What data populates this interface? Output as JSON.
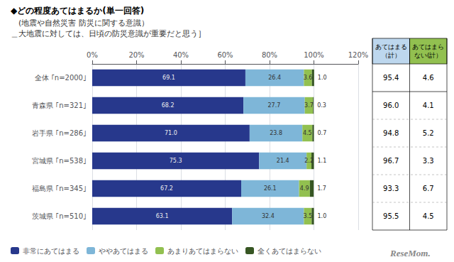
{
  "chart_data": {
    "type": "bar",
    "orientation": "horizontal",
    "stacked": true,
    "data_labels": true,
    "grid": true,
    "legend": "lower left",
    "title": "◆どの程度あてはまるか(単一回答)",
    "subtitle": "　(地震や自然災害 防災に関する意識）\n＿大地震に対しては、日頃の防災意識が重要だと思う］",
    "categories": [
      "全体 ｢n=2000｣",
      "青森県 ｢n=321｣",
      "岩手県 ｢n=286｣",
      "宮城県 ｢n=538｣",
      "福島県 ｢n=345｣",
      "茨城県 ｢n=510｣"
    ],
    "series": [
      {
        "name": "非常にあてはまる",
        "color": "#27388c",
        "values": [
          69.1,
          68.2,
          71.0,
          75.3,
          67.2,
          63.1
        ],
        "value_labels": [
          "69.1",
          "68.2",
          "71.0",
          "75.3",
          "67.2",
          "63.1"
        ]
      },
      {
        "name": "ややあてはまる",
        "color": "#7eb6d8",
        "values": [
          26.4,
          27.7,
          23.8,
          21.4,
          26.1,
          32.4
        ]
      },
      {
        "name": "あまりあてはまらない",
        "color": "#92c050",
        "values": [
          3.6,
          3.7,
          4.5,
          2.2,
          4.9,
          3.5
        ]
      },
      {
        "name": "全くあてはまらない",
        "color": "#375623",
        "values": [
          1.0,
          0.3,
          0.7,
          1.1,
          1.7,
          1.0
        ],
        "value_labels": [
          "1.0",
          "0.3",
          "0.7",
          "1.1",
          "1.7",
          "1.0"
        ]
      }
    ],
    "xlim": [
      0,
      120
    ],
    "xticks": [
      {
        "value": 0,
        "label": "0%"
      },
      {
        "value": 20,
        "label": "20%"
      },
      {
        "value": 40,
        "label": "40%"
      },
      {
        "value": 60,
        "label": "60%"
      },
      {
        "value": 80,
        "label": "80%"
      },
      {
        "value": 100,
        "label": "100%"
      },
      {
        "value": 120,
        "label": "120%"
      }
    ],
    "table": {
      "columns": [
        {
          "header": "あてはまる\n（計）",
          "color": "#bdd7ee",
          "values": [
            95.4,
            96.0,
            94.8,
            96.7,
            93.3,
            95.5
          ],
          "value_labels": [
            "95.4",
            "96.0",
            "94.8",
            "96.7",
            "93.3",
            "95.5"
          ]
        },
        {
          "header": "あてはまら\nない(計）",
          "color": "#92c050",
          "values": [
            4.6,
            4.1,
            5.2,
            3.3,
            6.7,
            4.5
          ]
        }
      ]
    },
    "annotations": [
      "ReseMom."
    ]
  }
}
